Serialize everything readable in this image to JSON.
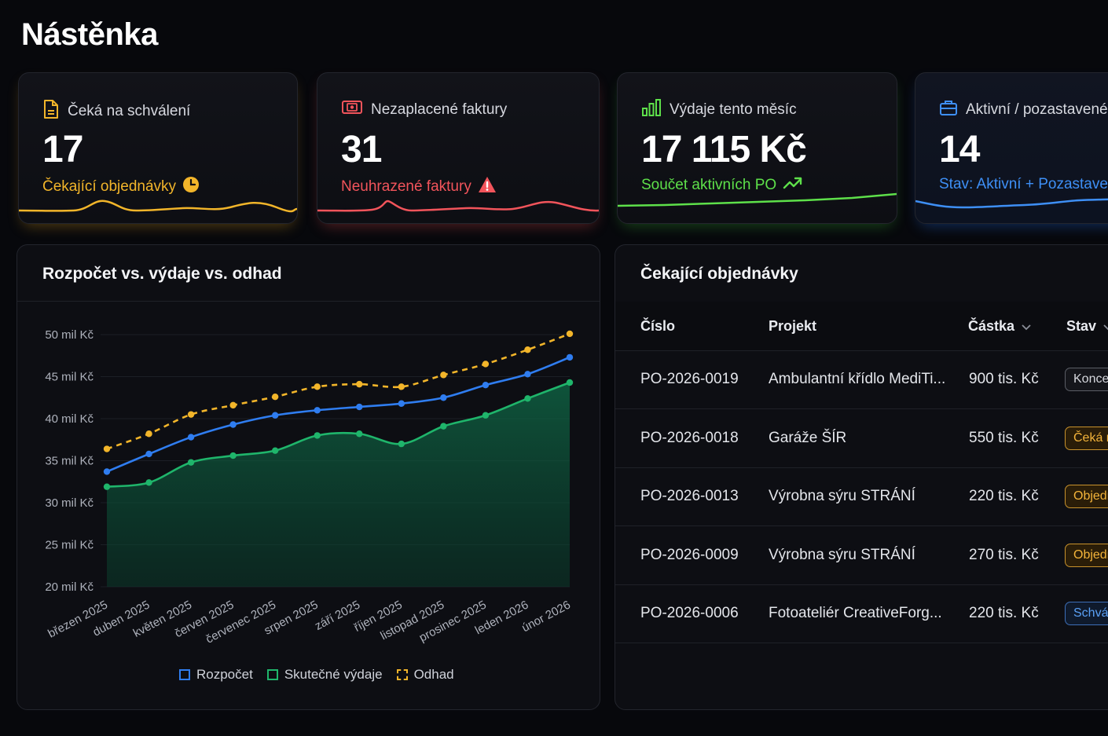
{
  "page": {
    "title": "Nástěnka"
  },
  "kpis": [
    {
      "label": "Čeká na schválení",
      "value": "17",
      "sub": "Čekající objednávky",
      "icon": "document-icon",
      "sub_icon": "clock-icon",
      "color": "#f2b52a"
    },
    {
      "label": "Nezaplacené faktury",
      "value": "31",
      "sub": "Neuhrazené faktury",
      "icon": "banknote-icon",
      "sub_icon": "warning-triangle-icon",
      "color": "#f2545b"
    },
    {
      "label": "Výdaje tento měsíc",
      "value": "17 115 Kč",
      "sub": "Součet aktivních PO",
      "icon": "bar-chart-icon",
      "sub_icon": "trend-up-icon",
      "color": "#5ee04a"
    },
    {
      "label": "Aktivní / pozastavené",
      "value": "14",
      "sub": "Stav: Aktivní + Pozastavené",
      "icon": "briefcase-icon",
      "color": "#3e8ff5"
    }
  ],
  "chart": {
    "title": "Rozpočet vs. výdaje vs. odhad",
    "legend": [
      "Rozpočet",
      "Skutečné výdaje",
      "Odhad"
    ]
  },
  "chart_data": {
    "type": "line",
    "title": "Rozpočet vs. výdaje vs. odhad",
    "x": [
      "březen 2025",
      "duben 2025",
      "květen 2025",
      "červen 2025",
      "červenec 2025",
      "srpen 2025",
      "září 2025",
      "říjen 2025",
      "listopad 2025",
      "prosinec 2025",
      "leden 2026",
      "únor 2026"
    ],
    "yticks": [
      "20 mil Kč",
      "25 mil Kč",
      "30 mil Kč",
      "35 mil Kč",
      "40 mil Kč",
      "45 mil Kč",
      "50 mil Kč"
    ],
    "ylim": [
      20,
      50
    ],
    "grid": true,
    "legend_position": "bottom",
    "series": [
      {
        "name": "Rozpočet",
        "color": "#2f7df0",
        "values": [
          33.7,
          35.8,
          37.8,
          39.3,
          40.4,
          41.0,
          41.4,
          41.8,
          42.5,
          44.0,
          45.3,
          47.3
        ]
      },
      {
        "name": "Skutečné výdaje",
        "color": "#1fb56b",
        "values": [
          31.9,
          32.4,
          34.8,
          35.6,
          36.2,
          38.0,
          38.2,
          37.0,
          39.1,
          40.4,
          42.4,
          44.3
        ]
      },
      {
        "name": "Odhad",
        "color": "#f2b52a",
        "values": [
          36.4,
          38.2,
          40.5,
          41.6,
          42.6,
          43.8,
          44.1,
          43.8,
          45.2,
          46.5,
          48.2,
          50.1
        ]
      }
    ]
  },
  "table": {
    "title": "Čekající objednávky",
    "headers": {
      "number": "Číslo",
      "project": "Projekt",
      "amount": "Částka",
      "status": "Stav"
    },
    "rows": [
      {
        "number": "PO-2026-0019",
        "project": "Ambulantní křídlo MediTi...",
        "amount": "900 tis. Kč",
        "status": "Koncept",
        "variant": "gray"
      },
      {
        "number": "PO-2026-0018",
        "project": "Garáže ŠÍR",
        "amount": "550 tis. Kč",
        "status": "Čeká na schválení",
        "variant": "amber"
      },
      {
        "number": "PO-2026-0013",
        "project": "Výrobna sýru STRÁNÍ",
        "amount": "220 tis. Kč",
        "status": "Objednáno",
        "variant": "amber"
      },
      {
        "number": "PO-2026-0009",
        "project": "Výrobna sýru STRÁNÍ",
        "amount": "270 tis. Kč",
        "status": "Objednáno",
        "variant": "amber"
      },
      {
        "number": "PO-2026-0006",
        "project": "Fotoateliér CreativeForg...",
        "amount": "220 tis. Kč",
        "status": "Schváleno",
        "variant": "blue"
      }
    ]
  }
}
